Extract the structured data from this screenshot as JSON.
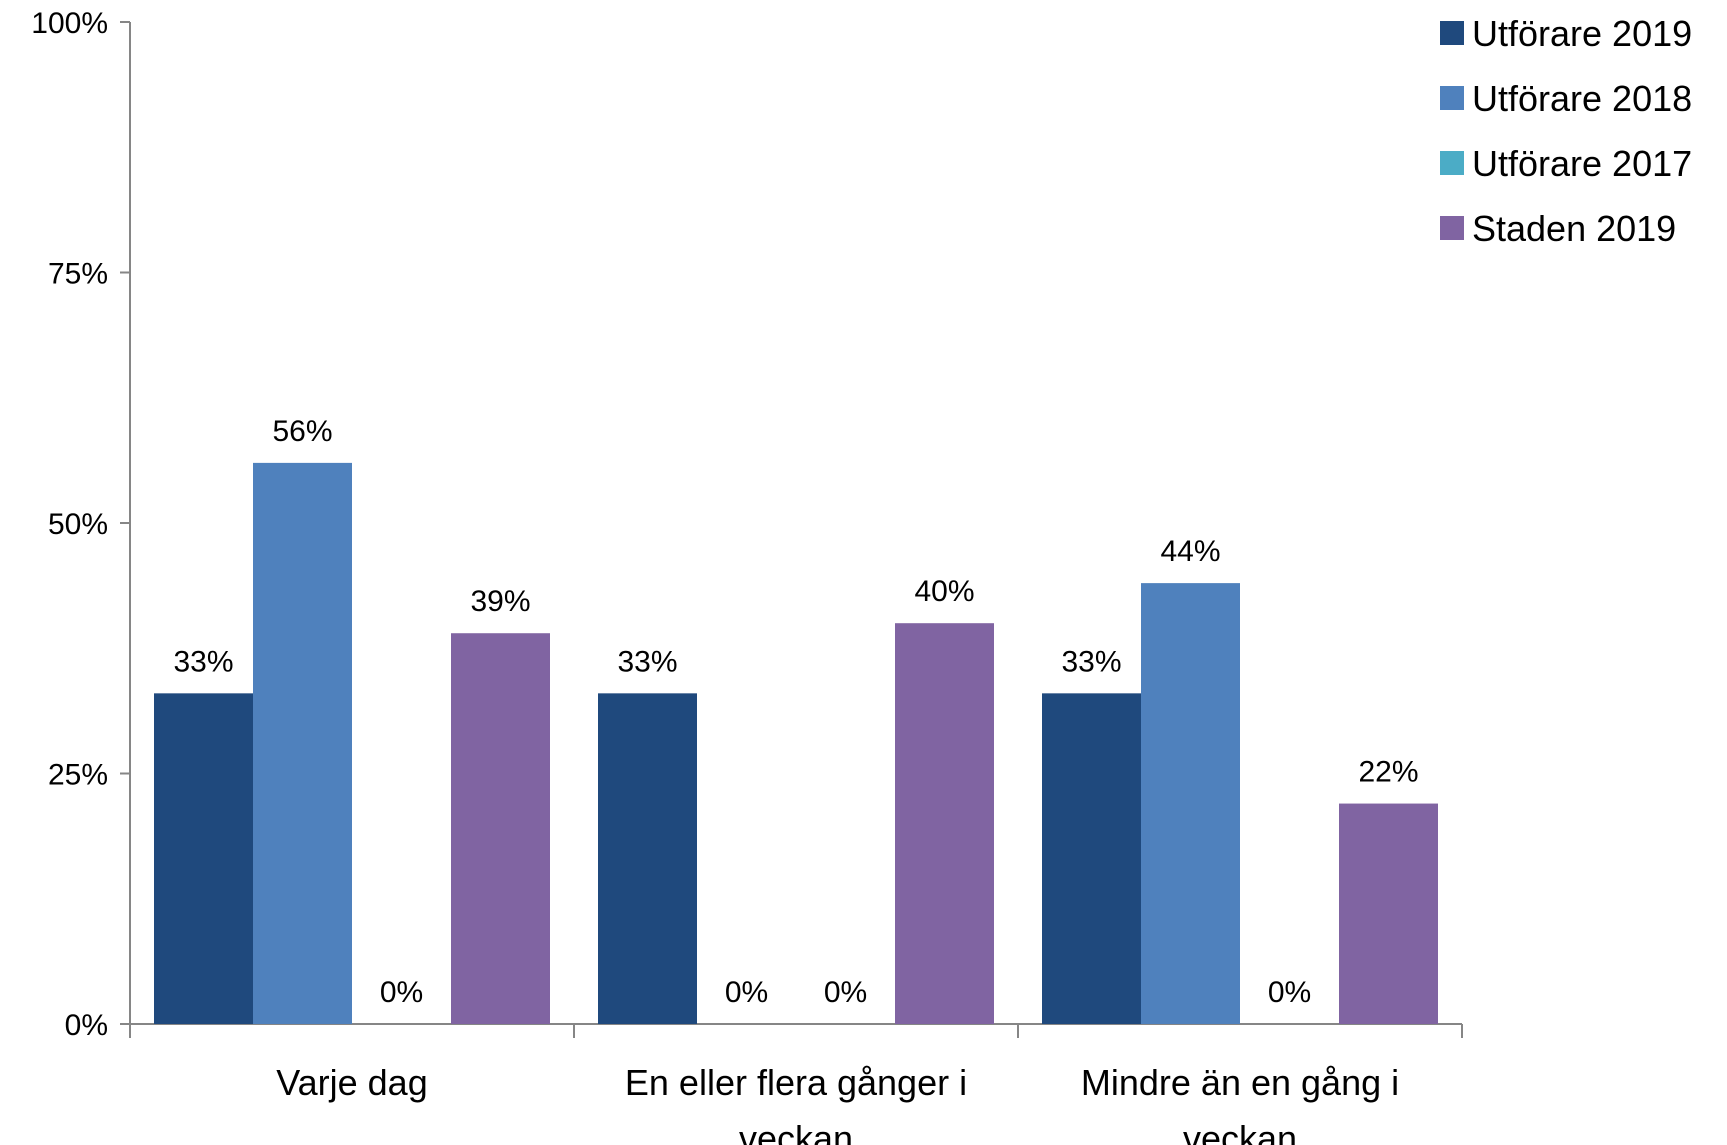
{
  "chart_data": {
    "type": "bar",
    "categories": [
      [
        "Varje dag"
      ],
      [
        "En eller flera gånger i",
        "veckan"
      ],
      [
        "Mindre än en gång i",
        "veckan"
      ]
    ],
    "series": [
      {
        "name": "Utförare 2019",
        "color": "#1F497D",
        "values": [
          33,
          33,
          33
        ],
        "labels": [
          "33%",
          "33%",
          "33%"
        ]
      },
      {
        "name": "Utförare 2018",
        "color": "#4F81BD",
        "values": [
          56,
          0,
          44
        ],
        "labels": [
          "56%",
          "0%",
          "44%"
        ]
      },
      {
        "name": "Utförare 2017",
        "color": "#4BACC6",
        "values": [
          0,
          0,
          0
        ],
        "labels": [
          "0%",
          "0%",
          "0%"
        ]
      },
      {
        "name": "Staden 2019",
        "color": "#8064A2",
        "values": [
          39,
          40,
          22
        ],
        "labels": [
          "39%",
          "40%",
          "22%"
        ]
      }
    ],
    "y_ticks": [
      "0%",
      "25%",
      "50%",
      "75%",
      "100%"
    ],
    "ylim": [
      0,
      100
    ],
    "grid": false,
    "legend_position": "top-right",
    "axis_color": "#868686"
  }
}
